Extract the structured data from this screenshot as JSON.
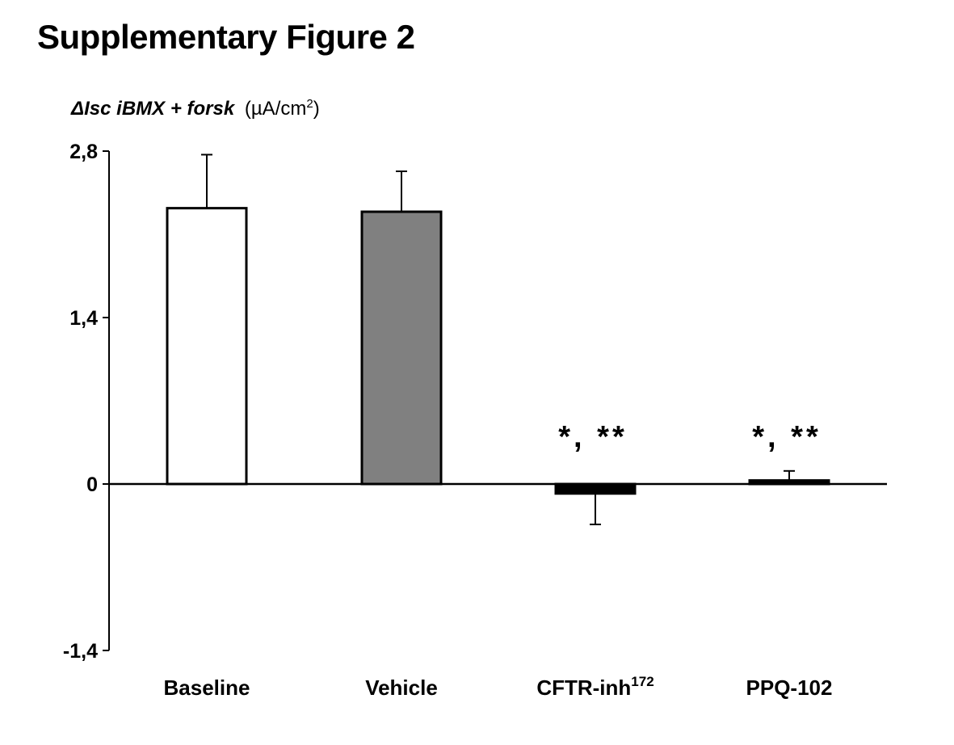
{
  "title": "Supplementary Figure 2",
  "chart_data": {
    "type": "bar",
    "ylabel": {
      "italic": "ΔIsc iBMX + forsk",
      "units": "(µA/cm",
      "units_sup": "2",
      "units_close": ")"
    },
    "ylim": [
      -1.4,
      2.8
    ],
    "yticks": [
      {
        "value": 2.8,
        "label": "2,8"
      },
      {
        "value": 1.4,
        "label": "1,4"
      },
      {
        "value": 0,
        "label": "0"
      },
      {
        "value": -1.4,
        "label": "-1,4"
      }
    ],
    "categories": [
      {
        "label": "Baseline",
        "sup": ""
      },
      {
        "label": "Vehicle",
        "sup": ""
      },
      {
        "label": "CFTR-inh",
        "sup": "172"
      },
      {
        "label": "PPQ-102",
        "sup": ""
      }
    ],
    "values": [
      2.32,
      2.29,
      -0.08,
      0.03
    ],
    "errors": [
      0.45,
      0.34,
      0.26,
      0.08
    ],
    "bar_colors": [
      "#ffffff",
      "#808080",
      "#000000",
      "#000000"
    ],
    "annotations": [
      "",
      "",
      "*, **",
      "*, **"
    ],
    "grid": false,
    "legend": "none"
  }
}
